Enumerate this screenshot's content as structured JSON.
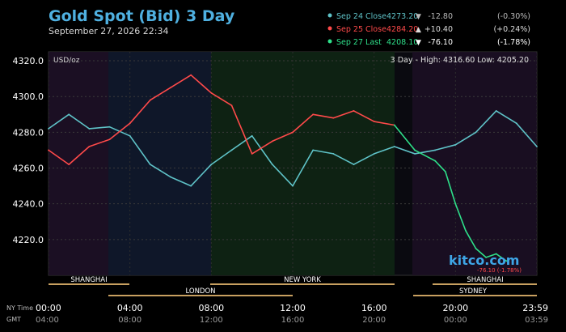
{
  "header": {
    "title": "Gold Spot (Bid) 3 Day",
    "datetime": "September 27, 2026 22:34"
  },
  "legend": [
    {
      "label": "Sep 24 Close",
      "price": "4273.20",
      "arrow": "▼",
      "change": "-12.80",
      "pct": "(-0.30%)",
      "color": "#5fc3c8"
    },
    {
      "label": "Sep 25 Close",
      "price": "4284.20",
      "arrow": "▲",
      "change": "+10.40",
      "pct": "(+0.24%)",
      "color": "#ff4a4a"
    },
    {
      "label": "Sep 27 Last",
      "price": "4208.10",
      "arrow": "▼",
      "change": "-76.10",
      "pct": "(-1.78%)",
      "color": "#2ee08a"
    }
  ],
  "plot_labels": {
    "unit": "USD/oz",
    "range_label": "3 Day - High: 4316.60  Low: 4205.20",
    "watermark": "kitco.com",
    "last_annotation": "-76.10 (-1.78%)"
  },
  "sessions": {
    "top": [
      "SHANGHAI",
      "NEW YORK",
      "SHANGHAI"
    ],
    "bottom": [
      "LONDON",
      "SYDNEY"
    ]
  },
  "time_axis": {
    "ny_label": "NY Time",
    "gmt_label": "GMT",
    "ny_ticks": [
      "00:00",
      "04:00",
      "08:00",
      "12:00",
      "16:00",
      "20:00",
      "23:59"
    ],
    "gmt_ticks": [
      "04:00",
      "08:00",
      "12:00",
      "16:00",
      "20:00",
      "00:00",
      "03:59"
    ]
  },
  "colors": {
    "background": "#000000",
    "title": "#4fb0e0",
    "price_labels": "#ffffff",
    "session_bar": "#c8a060"
  },
  "chart_data": {
    "type": "line",
    "title": "Gold Spot (Bid) 3 Day",
    "ylabel": "USD/oz",
    "ylim": [
      4200,
      4325
    ],
    "y_ticks": [
      4220.0,
      4240.0,
      4260.0,
      4280.0,
      4300.0,
      4320.0
    ],
    "x_domain_hours": [
      0,
      24
    ],
    "grid": true,
    "legend_position": "top-right",
    "series": [
      {
        "name": "Sep 24 Close",
        "color": "#5fc3c8",
        "x": [
          0,
          1,
          1.5,
          2,
          3,
          4,
          5,
          6,
          7,
          8,
          9,
          10,
          11,
          12,
          13,
          14,
          15,
          16,
          17,
          18,
          19,
          20,
          21,
          22,
          23,
          24
        ],
        "y": [
          4282,
          4290,
          4286,
          4282,
          4283,
          4278,
          4262,
          4255,
          4250,
          4262,
          4270,
          4278,
          4262,
          4250,
          4270,
          4268,
          4262,
          4268,
          4272,
          4268,
          4270,
          4273,
          4280,
          4292,
          4285,
          4272
        ]
      },
      {
        "name": "Sep 25 Close",
        "color": "#ff4a4a",
        "x": [
          0,
          1,
          2,
          3,
          4,
          5,
          6,
          7,
          8,
          9,
          10,
          11,
          12,
          13,
          14,
          15,
          16,
          17
        ],
        "y": [
          4270,
          4262,
          4272,
          4276,
          4285,
          4298,
          4305,
          4312,
          4302,
          4295,
          4268,
          4275,
          4280,
          4290,
          4288,
          4292,
          4286,
          4284
        ]
      },
      {
        "name": "Sep 27 Last",
        "color": "#2ee08a",
        "x": [
          17,
          18,
          19,
          19.5,
          20,
          20.5,
          21,
          21.5,
          22,
          22.5
        ],
        "y": [
          4284,
          4270,
          4264,
          4258,
          4240,
          4225,
          4215,
          4210,
          4212,
          4208
        ]
      }
    ]
  }
}
